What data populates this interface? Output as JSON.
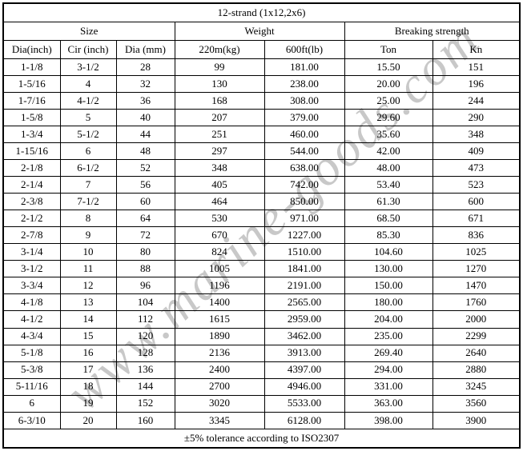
{
  "chart_data": {
    "type": "table",
    "title": "12-strand (1x12,2x6)",
    "column_groups": [
      {
        "label": "Size",
        "span": 3
      },
      {
        "label": "Weight",
        "span": 2
      },
      {
        "label": "Breaking strength",
        "span": 2
      }
    ],
    "columns": [
      "Dia(inch)",
      "Cir (inch)",
      "Dia (mm)",
      "220m(kg)",
      "600ft(lb)",
      "Ton",
      "Kn"
    ],
    "rows": [
      [
        "1-1/8",
        "3-1/2",
        "28",
        "99",
        "181.00",
        "15.50",
        "151"
      ],
      [
        "1-5/16",
        "4",
        "32",
        "130",
        "238.00",
        "20.00",
        "196"
      ],
      [
        "1-7/16",
        "4-1/2",
        "36",
        "168",
        "308.00",
        "25.00",
        "244"
      ],
      [
        "1-5/8",
        "5",
        "40",
        "207",
        "379.00",
        "29.60",
        "290"
      ],
      [
        "1-3/4",
        "5-1/2",
        "44",
        "251",
        "460.00",
        "35.60",
        "348"
      ],
      [
        "1-15/16",
        "6",
        "48",
        "297",
        "544.00",
        "42.00",
        "409"
      ],
      [
        "2-1/8",
        "6-1/2",
        "52",
        "348",
        "638.00",
        "48.00",
        "473"
      ],
      [
        "2-1/4",
        "7",
        "56",
        "405",
        "742.00",
        "53.40",
        "523"
      ],
      [
        "2-3/8",
        "7-1/2",
        "60",
        "464",
        "850.00",
        "61.30",
        "600"
      ],
      [
        "2-1/2",
        "8",
        "64",
        "530",
        "971.00",
        "68.50",
        "671"
      ],
      [
        "2-7/8",
        "9",
        "72",
        "670",
        "1227.00",
        "85.30",
        "836"
      ],
      [
        "3-1/4",
        "10",
        "80",
        "824",
        "1510.00",
        "104.60",
        "1025"
      ],
      [
        "3-1/2",
        "11",
        "88",
        "1005",
        "1841.00",
        "130.00",
        "1270"
      ],
      [
        "3-3/4",
        "12",
        "96",
        "1196",
        "2191.00",
        "150.00",
        "1470"
      ],
      [
        "4-1/8",
        "13",
        "104",
        "1400",
        "2565.00",
        "180.00",
        "1760"
      ],
      [
        "4-1/2",
        "14",
        "112",
        "1615",
        "2959.00",
        "204.00",
        "2000"
      ],
      [
        "4-3/4",
        "15",
        "120",
        "1890",
        "3462.00",
        "235.00",
        "2299"
      ],
      [
        "5-1/8",
        "16",
        "128",
        "2136",
        "3913.00",
        "269.40",
        "2640"
      ],
      [
        "5-3/8",
        "17",
        "136",
        "2400",
        "4397.00",
        "294.00",
        "2880"
      ],
      [
        "5-11/16",
        "18",
        "144",
        "2700",
        "4946.00",
        "331.00",
        "3245"
      ],
      [
        "6",
        "19",
        "152",
        "3020",
        "5533.00",
        "363.00",
        "3560"
      ],
      [
        "6-3/10",
        "20",
        "160",
        "3345",
        "6128.00",
        "398.00",
        "3900"
      ]
    ],
    "footer": "±5% tolerance according to ISO2307",
    "layout": {
      "grid": true,
      "border_color": "#000000"
    }
  },
  "watermark": {
    "text": "www.marine-goods.com",
    "color": "#c8c8c8"
  }
}
